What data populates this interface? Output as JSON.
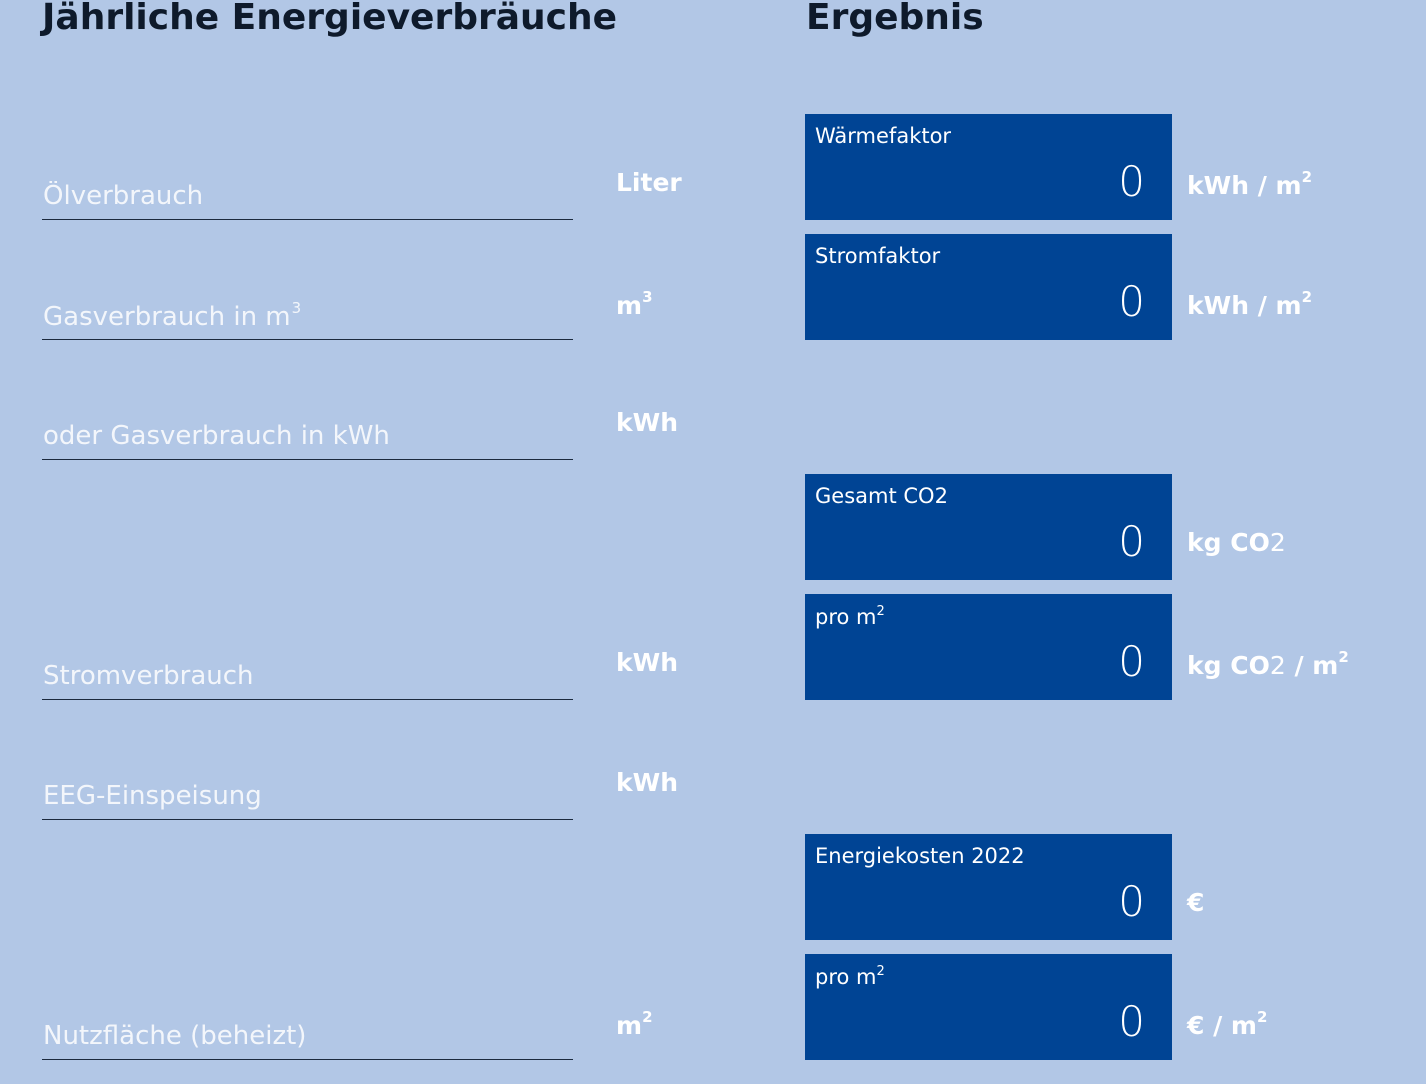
{
  "headings": {
    "left": "Jährliche Energieverbräuche",
    "right": "Ergebnis"
  },
  "inputs": {
    "oil": {
      "placeholder": "Ölverbrauch",
      "value": "",
      "unit": "Liter"
    },
    "gas_m3": {
      "placeholder": "Gasverbrauch in m",
      "placeholder_sup": "3",
      "value": "",
      "unit": "m",
      "unit_sup": "3"
    },
    "gas_kwh": {
      "placeholder": "oder Gasverbrauch in kWh",
      "value": "",
      "unit": "kWh"
    },
    "power": {
      "placeholder": "Stromverbrauch",
      "value": "",
      "unit": "kWh"
    },
    "eeg": {
      "placeholder": "EEG-Einspeisung",
      "value": "",
      "unit": "kWh"
    },
    "area": {
      "placeholder": "Nutzfläche (beheizt)",
      "value": "",
      "unit": "m",
      "unit_sup": "2"
    }
  },
  "results": {
    "heat_factor": {
      "label": "Wärmefaktor",
      "value": "0",
      "unit": "kWh / m",
      "unit_sup": "2"
    },
    "power_factor": {
      "label": "Stromfaktor",
      "value": "0",
      "unit": "kWh / m",
      "unit_sup": "2"
    },
    "total_co2": {
      "label": "Gesamt CO",
      "label_sub": "2",
      "value": "0",
      "unit": "kg CO",
      "unit_sub": "2"
    },
    "co2_per_m2": {
      "label": "pro m",
      "label_sup": "2",
      "value": "0",
      "unit": "kg CO",
      "unit_sub": "2",
      "unit_rest": " / m",
      "unit_sup": "2"
    },
    "energy_cost": {
      "label": "Energiekosten 2022",
      "value": "0",
      "unit": "€"
    },
    "cost_per_m2": {
      "label": "pro m",
      "label_sup": "2",
      "value": "0",
      "unit": "€ / m",
      "unit_sup": "2"
    }
  },
  "colors": {
    "background": "#b2c7e6",
    "result_box": "#004494",
    "heading_text": "#0e1a2b",
    "text_light": "#ffffff"
  }
}
